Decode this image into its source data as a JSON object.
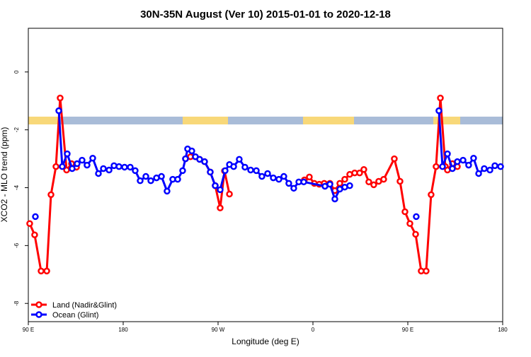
{
  "chart_data": {
    "type": "line",
    "title": "30N-35N August (Ver 10)   2015-01-01 to 2020-12-18",
    "x_label": "Longitude (deg E)",
    "y_label": "XCO2 - MLO trend (ppm)",
    "xlim": [
      90,
      540
    ],
    "xticks": [
      {
        "value": 90,
        "label": "90 E"
      },
      {
        "value": 180,
        "label": "180"
      },
      {
        "value": 270,
        "label": "90 W"
      },
      {
        "value": 360,
        "label": "0"
      },
      {
        "value": 450,
        "label": "90 E"
      },
      {
        "value": 540,
        "label": "180"
      }
    ],
    "ylim": [
      -8.63,
      1.51
    ],
    "yticks": [
      0,
      -2,
      -4,
      -6,
      -8
    ],
    "legend": "bottomleft",
    "series": [
      {
        "name": "Land (Nadir&Glint)",
        "color": "#ff0000",
        "x": [
          91.3,
          96.0,
          102.1,
          107.5,
          111.5,
          116.2,
          120.2,
          126.3,
          131.0,
          135.7,
          140,
          239.1,
          243.8,
          248.5,
          252.5,
          257.2,
          262.6,
          267.3,
          272.0,
          276.1,
          280.8,
          300,
          351.9,
          356.6,
          361.3,
          366.0,
          370.7,
          376.1,
          380.8,
          385.5,
          390.2,
          394.9,
          399.6,
          404.3,
          408.3,
          413.0,
          417.7,
          422.4,
          427.1,
          437.2,
          442.6,
          447.3,
          452.0,
          457.4,
          462.7,
          467.4,
          472.1,
          476.8,
          480.9,
          485.6,
          487.6,
          492.3,
          497.0
        ],
        "values": [
          -5.24,
          -5.63,
          -6.88,
          -6.88,
          -4.24,
          -3.27,
          -0.9,
          -3.39,
          -3.17,
          -3.29,
          null,
          -3.0,
          -2.93,
          -2.93,
          -3.02,
          -3.1,
          -3.46,
          -3.93,
          -4.7,
          -3.42,
          -4.22,
          null,
          -3.73,
          -3.63,
          -3.85,
          -3.88,
          -3.85,
          -3.85,
          -4.1,
          -3.85,
          -3.71,
          -3.54,
          -3.49,
          -3.49,
          -3.37,
          -3.8,
          -3.9,
          -3.78,
          -3.71,
          -3.0,
          -3.78,
          -4.83,
          -5.24,
          -5.61,
          -6.88,
          -6.88,
          -4.24,
          -3.27,
          -0.9,
          -3.27,
          -3.39,
          -3.17,
          -3.27
        ]
      },
      {
        "name": "Ocean (Glint)",
        "color": "#0000ff",
        "x": [
          96.7,
          100,
          118.9,
          122.2,
          126.9,
          131.6,
          136.3,
          141.0,
          145.7,
          151.1,
          156.5,
          161.2,
          166.6,
          171.3,
          176.0,
          181.3,
          186.7,
          191.4,
          196.1,
          201.5,
          206.2,
          211.6,
          216.3,
          221.6,
          227.0,
          231.7,
          236.4,
          239.1,
          241.1,
          245.1,
          248.5,
          252.5,
          257.2,
          262.6,
          267.3,
          272.0,
          276.7,
          280.8,
          284.8,
          290.1,
          295.5,
          300.9,
          306.3,
          311.6,
          317.0,
          322.4,
          327.7,
          332.4,
          337.1,
          341.8,
          346.6,
          351.3,
          371.4,
          376.1,
          380.8,
          385.5,
          390.2,
          394.9,
          420,
          458.0,
          470,
          479.5,
          482.9,
          487.6,
          492.3,
          497.0,
          502.4,
          507.7,
          512.4,
          517.2,
          522.5,
          527.9,
          532.6,
          538.0
        ],
        "values": [
          -5.0,
          null,
          -1.34,
          -3.27,
          -2.83,
          -3.34,
          -3.17,
          -3.05,
          -3.22,
          -2.98,
          -3.51,
          -3.34,
          -3.39,
          -3.24,
          -3.27,
          -3.29,
          -3.29,
          -3.41,
          -3.76,
          -3.61,
          -3.76,
          -3.66,
          -3.61,
          -4.12,
          -3.71,
          -3.71,
          -3.41,
          -3.0,
          -2.66,
          -2.73,
          -2.93,
          -3.02,
          -3.1,
          -3.46,
          -3.93,
          -4.07,
          -3.41,
          -3.2,
          -3.27,
          -3.02,
          -3.29,
          -3.39,
          -3.41,
          -3.61,
          -3.51,
          -3.66,
          -3.71,
          -3.61,
          -3.85,
          -4.02,
          -3.8,
          -3.8,
          -3.95,
          -3.88,
          -4.39,
          -4.05,
          -3.98,
          -3.93,
          null,
          -5.0,
          null,
          -1.34,
          -3.27,
          -2.83,
          -3.34,
          -3.1,
          -3.05,
          -3.22,
          -2.98,
          -3.51,
          -3.34,
          -3.39,
          -3.24,
          -3.27
        ]
      }
    ]
  }
}
